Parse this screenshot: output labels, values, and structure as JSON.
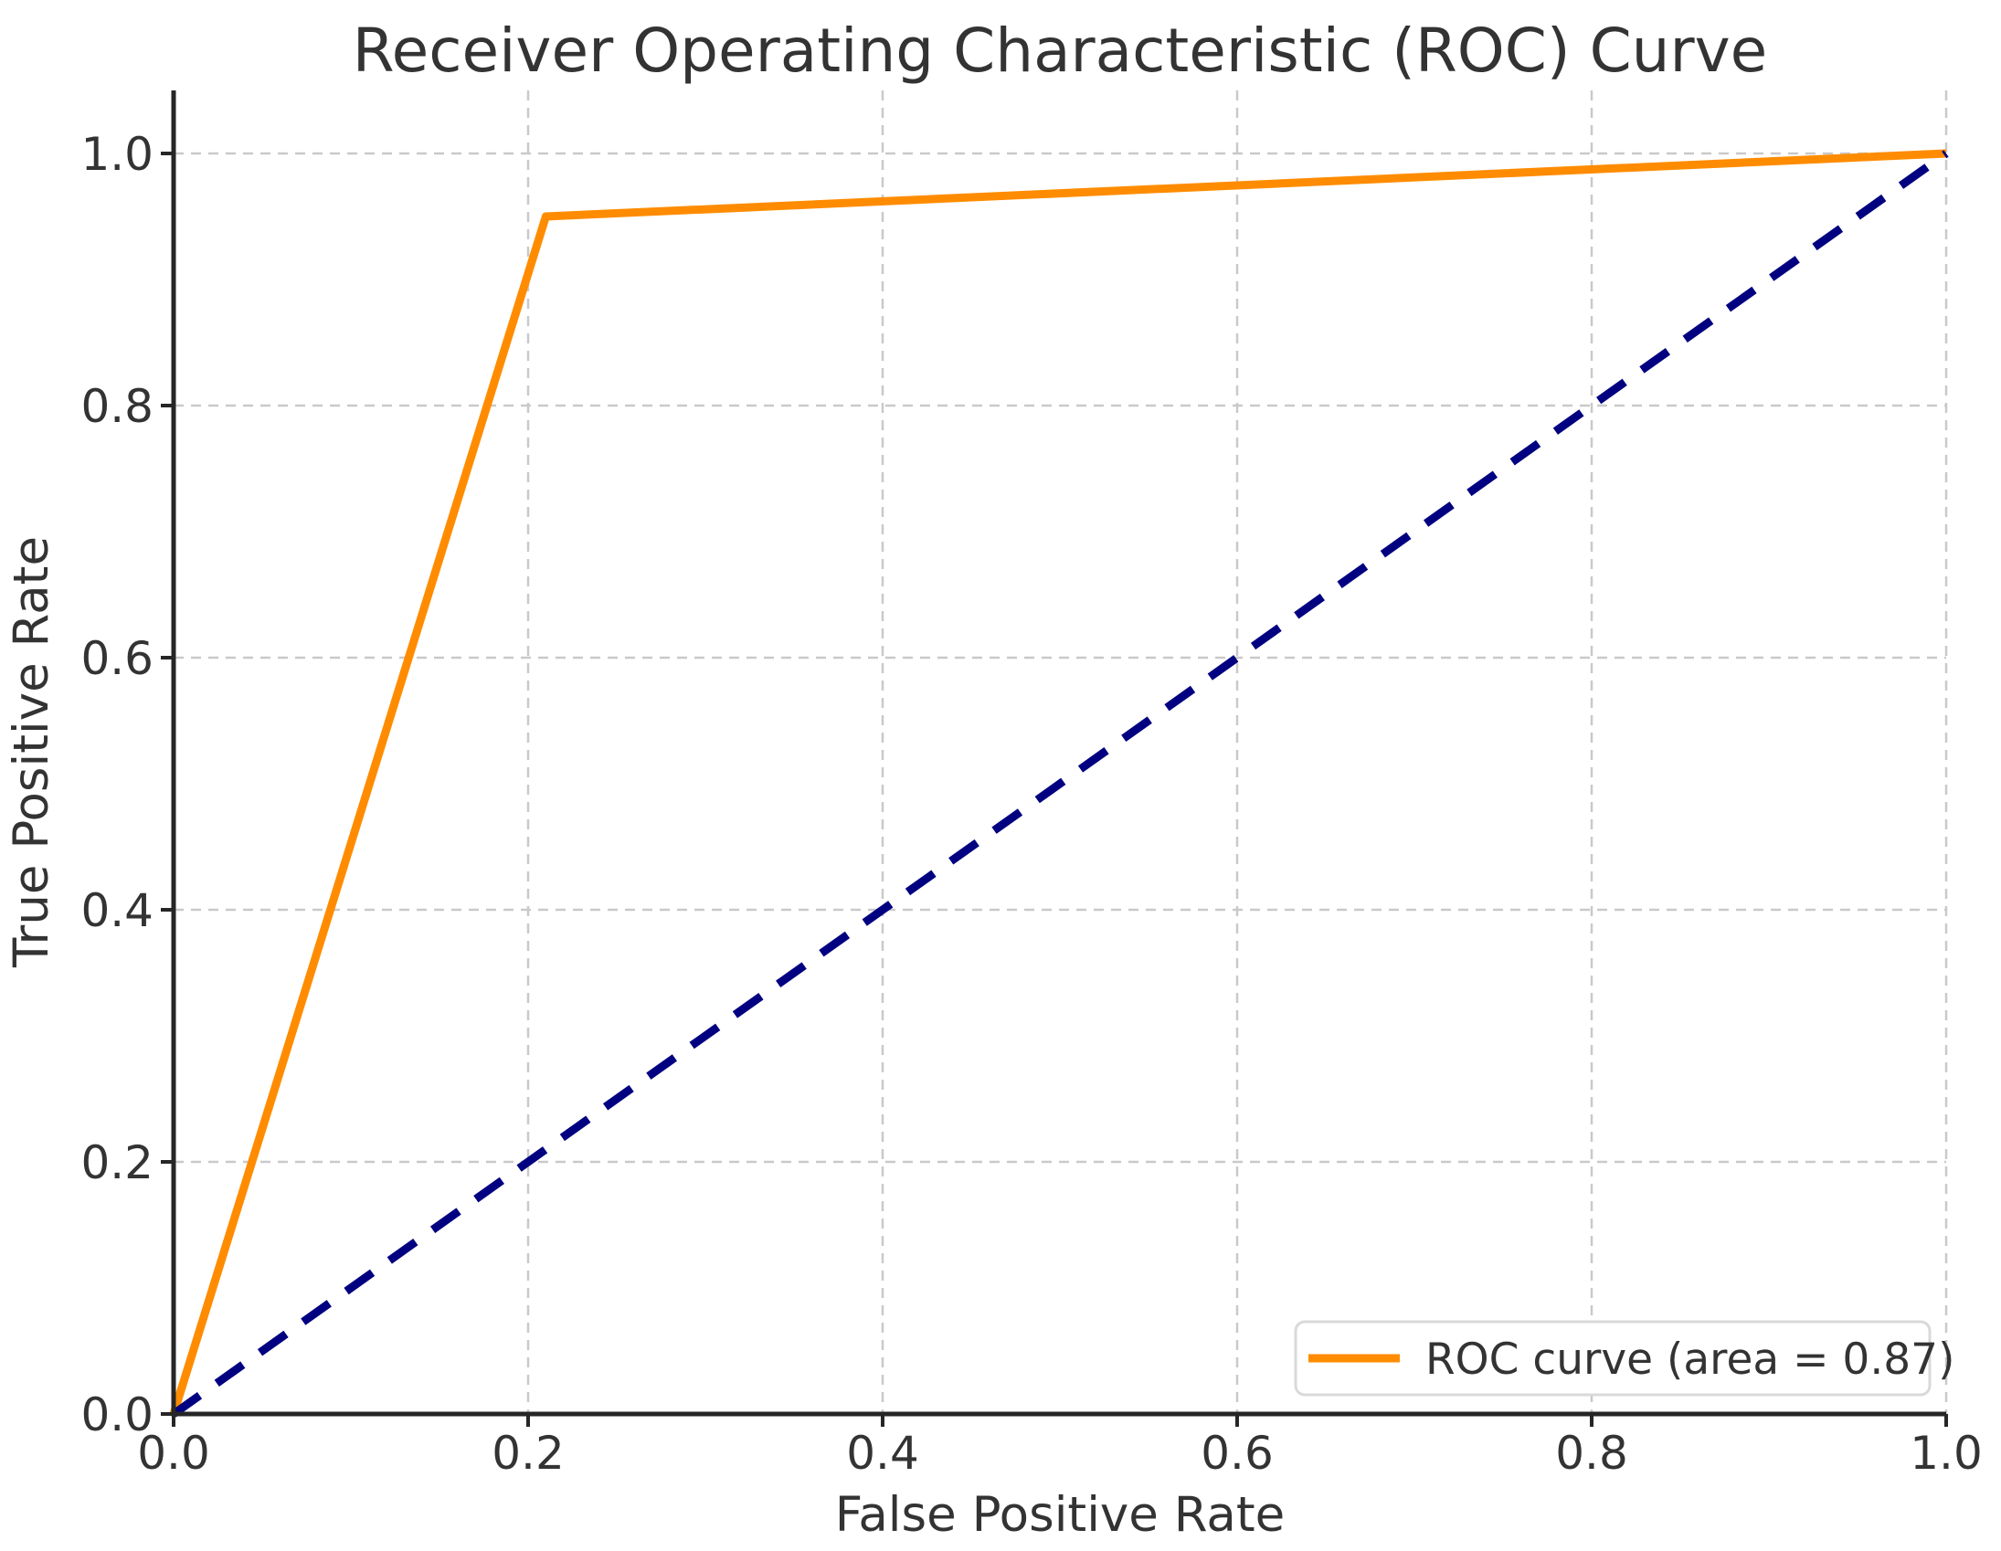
{
  "figure": {
    "background": "#ffffff"
  },
  "chart_data": {
    "type": "line",
    "title": "Receiver Operating Characteristic (ROC) Curve",
    "xlabel": "False Positive Rate",
    "ylabel": "True Positive Rate",
    "xlim": [
      0.0,
      1.0
    ],
    "ylim": [
      0.0,
      1.05
    ],
    "xticks": [
      "0.0",
      "0.2",
      "0.4",
      "0.6",
      "0.8",
      "1.0"
    ],
    "yticks": [
      "0.0",
      "0.2",
      "0.4",
      "0.6",
      "0.8",
      "1.0"
    ],
    "grid": true,
    "grid_style": "dashed",
    "series": [
      {
        "name": "roc-curve",
        "x": [
          0.0,
          0.21,
          1.0
        ],
        "y": [
          0.0,
          0.95,
          1.0
        ],
        "color": "#ff8c00",
        "line_style": "solid",
        "line_width": 9,
        "auc": 0.87
      },
      {
        "name": "chance-diagonal",
        "x": [
          0.0,
          1.0
        ],
        "y": [
          0.0,
          1.0
        ],
        "color": "#000080",
        "line_style": "dashed",
        "line_width": 9
      }
    ],
    "legend": {
      "position": "lower right",
      "entries": [
        {
          "label": "ROC curve (area = 0.87)",
          "color": "#ff8c00"
        }
      ]
    }
  },
  "colors": {
    "roc_line": "#ff8c00",
    "chance_line": "#000080",
    "grid_line": "#c9c9c9",
    "spine": "#262626",
    "text": "#333333",
    "legend_border": "#d9d9d9",
    "legend_background": "#ffffff"
  }
}
